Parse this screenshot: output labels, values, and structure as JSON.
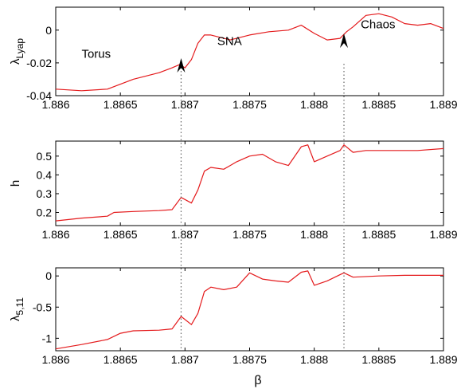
{
  "figure": {
    "x_axis_title": "β",
    "line_color": "#e41a1c",
    "marker_line_color": "#666666",
    "arrow_color": "#000000"
  },
  "chart_data": [
    {
      "type": "line",
      "ylabel_main": "λ",
      "ylabel_sub": "Lyap",
      "xlim": [
        1.886,
        1.889
      ],
      "ylim": [
        -0.04,
        0.014
      ],
      "xticks": [
        1.886,
        1.8865,
        1.887,
        1.8875,
        1.888,
        1.8885,
        1.889
      ],
      "xtick_labels": [
        "1.886",
        "1.8865",
        "1.887",
        "1.8875",
        "1.888",
        "1.8885",
        "1.889"
      ],
      "yticks": [
        -0.04,
        -0.02,
        0
      ],
      "ytick_labels": [
        "-0.04",
        "-0.02",
        "0"
      ],
      "series": [
        {
          "x": [
            1.886,
            1.8862,
            1.8864,
            1.8866,
            1.8868,
            1.8869,
            1.88696,
            1.887,
            1.88705,
            1.8871,
            1.88715,
            1.8872,
            1.88735,
            1.8875,
            1.88765,
            1.8878,
            1.8879,
            1.888,
            1.8881,
            1.8882,
            1.88825,
            1.8883,
            1.8884,
            1.8885,
            1.8886,
            1.8887,
            1.8888,
            1.8889,
            1.889
          ],
          "y": [
            -0.036,
            -0.037,
            -0.036,
            -0.03,
            -0.026,
            -0.023,
            -0.021,
            -0.023,
            -0.018,
            -0.008,
            -0.003,
            -0.003,
            -0.006,
            -0.003,
            -0.001,
            0.0,
            0.003,
            -0.002,
            -0.006,
            -0.005,
            -0.001,
            0.002,
            0.009,
            0.01,
            0.008,
            0.004,
            0.003,
            0.004,
            0.001
          ]
        }
      ],
      "annotations": [
        "Torus",
        "SNA",
        "Chaos"
      ]
    },
    {
      "type": "line",
      "ylabel_main": "h",
      "ylabel_sub": "",
      "xlim": [
        1.886,
        1.889
      ],
      "ylim": [
        0.13,
        0.58
      ],
      "xticks": [
        1.886,
        1.8865,
        1.887,
        1.8875,
        1.888,
        1.8885,
        1.889
      ],
      "xtick_labels": [
        "1.886",
        "1.8865",
        "1.887",
        "1.8875",
        "1.888",
        "1.8885",
        "1.889"
      ],
      "yticks": [
        0.2,
        0.3,
        0.4,
        0.5
      ],
      "ytick_labels": [
        "0.2",
        "0.3",
        "0.4",
        "0.5"
      ],
      "series": [
        {
          "x": [
            1.886,
            1.8862,
            1.8864,
            1.88645,
            1.8866,
            1.8868,
            1.8869,
            1.88697,
            1.88705,
            1.8871,
            1.88715,
            1.8872,
            1.8873,
            1.88735,
            1.8874,
            1.8875,
            1.8876,
            1.8877,
            1.8878,
            1.8879,
            1.88795,
            1.888,
            1.8881,
            1.8882,
            1.88823,
            1.8883,
            1.8884,
            1.8886,
            1.8888,
            1.889
          ],
          "y": [
            0.155,
            0.17,
            0.18,
            0.2,
            0.205,
            0.21,
            0.215,
            0.28,
            0.25,
            0.32,
            0.42,
            0.44,
            0.43,
            0.45,
            0.47,
            0.5,
            0.51,
            0.47,
            0.45,
            0.55,
            0.56,
            0.47,
            0.5,
            0.53,
            0.56,
            0.52,
            0.53,
            0.53,
            0.53,
            0.54
          ]
        }
      ]
    },
    {
      "type": "line",
      "ylabel_main": "λ",
      "ylabel_sub": "5,11",
      "xlim": [
        1.886,
        1.889
      ],
      "ylim": [
        -1.2,
        0.13
      ],
      "xticks": [
        1.886,
        1.8865,
        1.887,
        1.8875,
        1.888,
        1.8885,
        1.889
      ],
      "xtick_labels": [
        "1.886",
        "1.8865",
        "1.887",
        "1.8875",
        "1.888",
        "1.8885",
        "1.889"
      ],
      "yticks": [
        -1,
        -0.5,
        0
      ],
      "ytick_labels": [
        "-1",
        "-0.5",
        "0"
      ],
      "series": [
        {
          "x": [
            1.886,
            1.8862,
            1.8864,
            1.8865,
            1.8866,
            1.8868,
            1.8869,
            1.88697,
            1.88705,
            1.8871,
            1.88715,
            1.8872,
            1.8873,
            1.8874,
            1.8875,
            1.8876,
            1.8877,
            1.8878,
            1.8879,
            1.88795,
            1.888,
            1.8881,
            1.8882,
            1.88823,
            1.8883,
            1.8885,
            1.8887,
            1.889
          ],
          "y": [
            -1.17,
            -1.1,
            -1.02,
            -0.92,
            -0.88,
            -0.87,
            -0.85,
            -0.65,
            -0.78,
            -0.6,
            -0.25,
            -0.18,
            -0.22,
            -0.18,
            0.05,
            -0.05,
            -0.08,
            -0.1,
            0.06,
            0.08,
            -0.15,
            -0.08,
            0.02,
            0.05,
            -0.02,
            0.0,
            0.01,
            0.01
          ]
        }
      ]
    }
  ]
}
